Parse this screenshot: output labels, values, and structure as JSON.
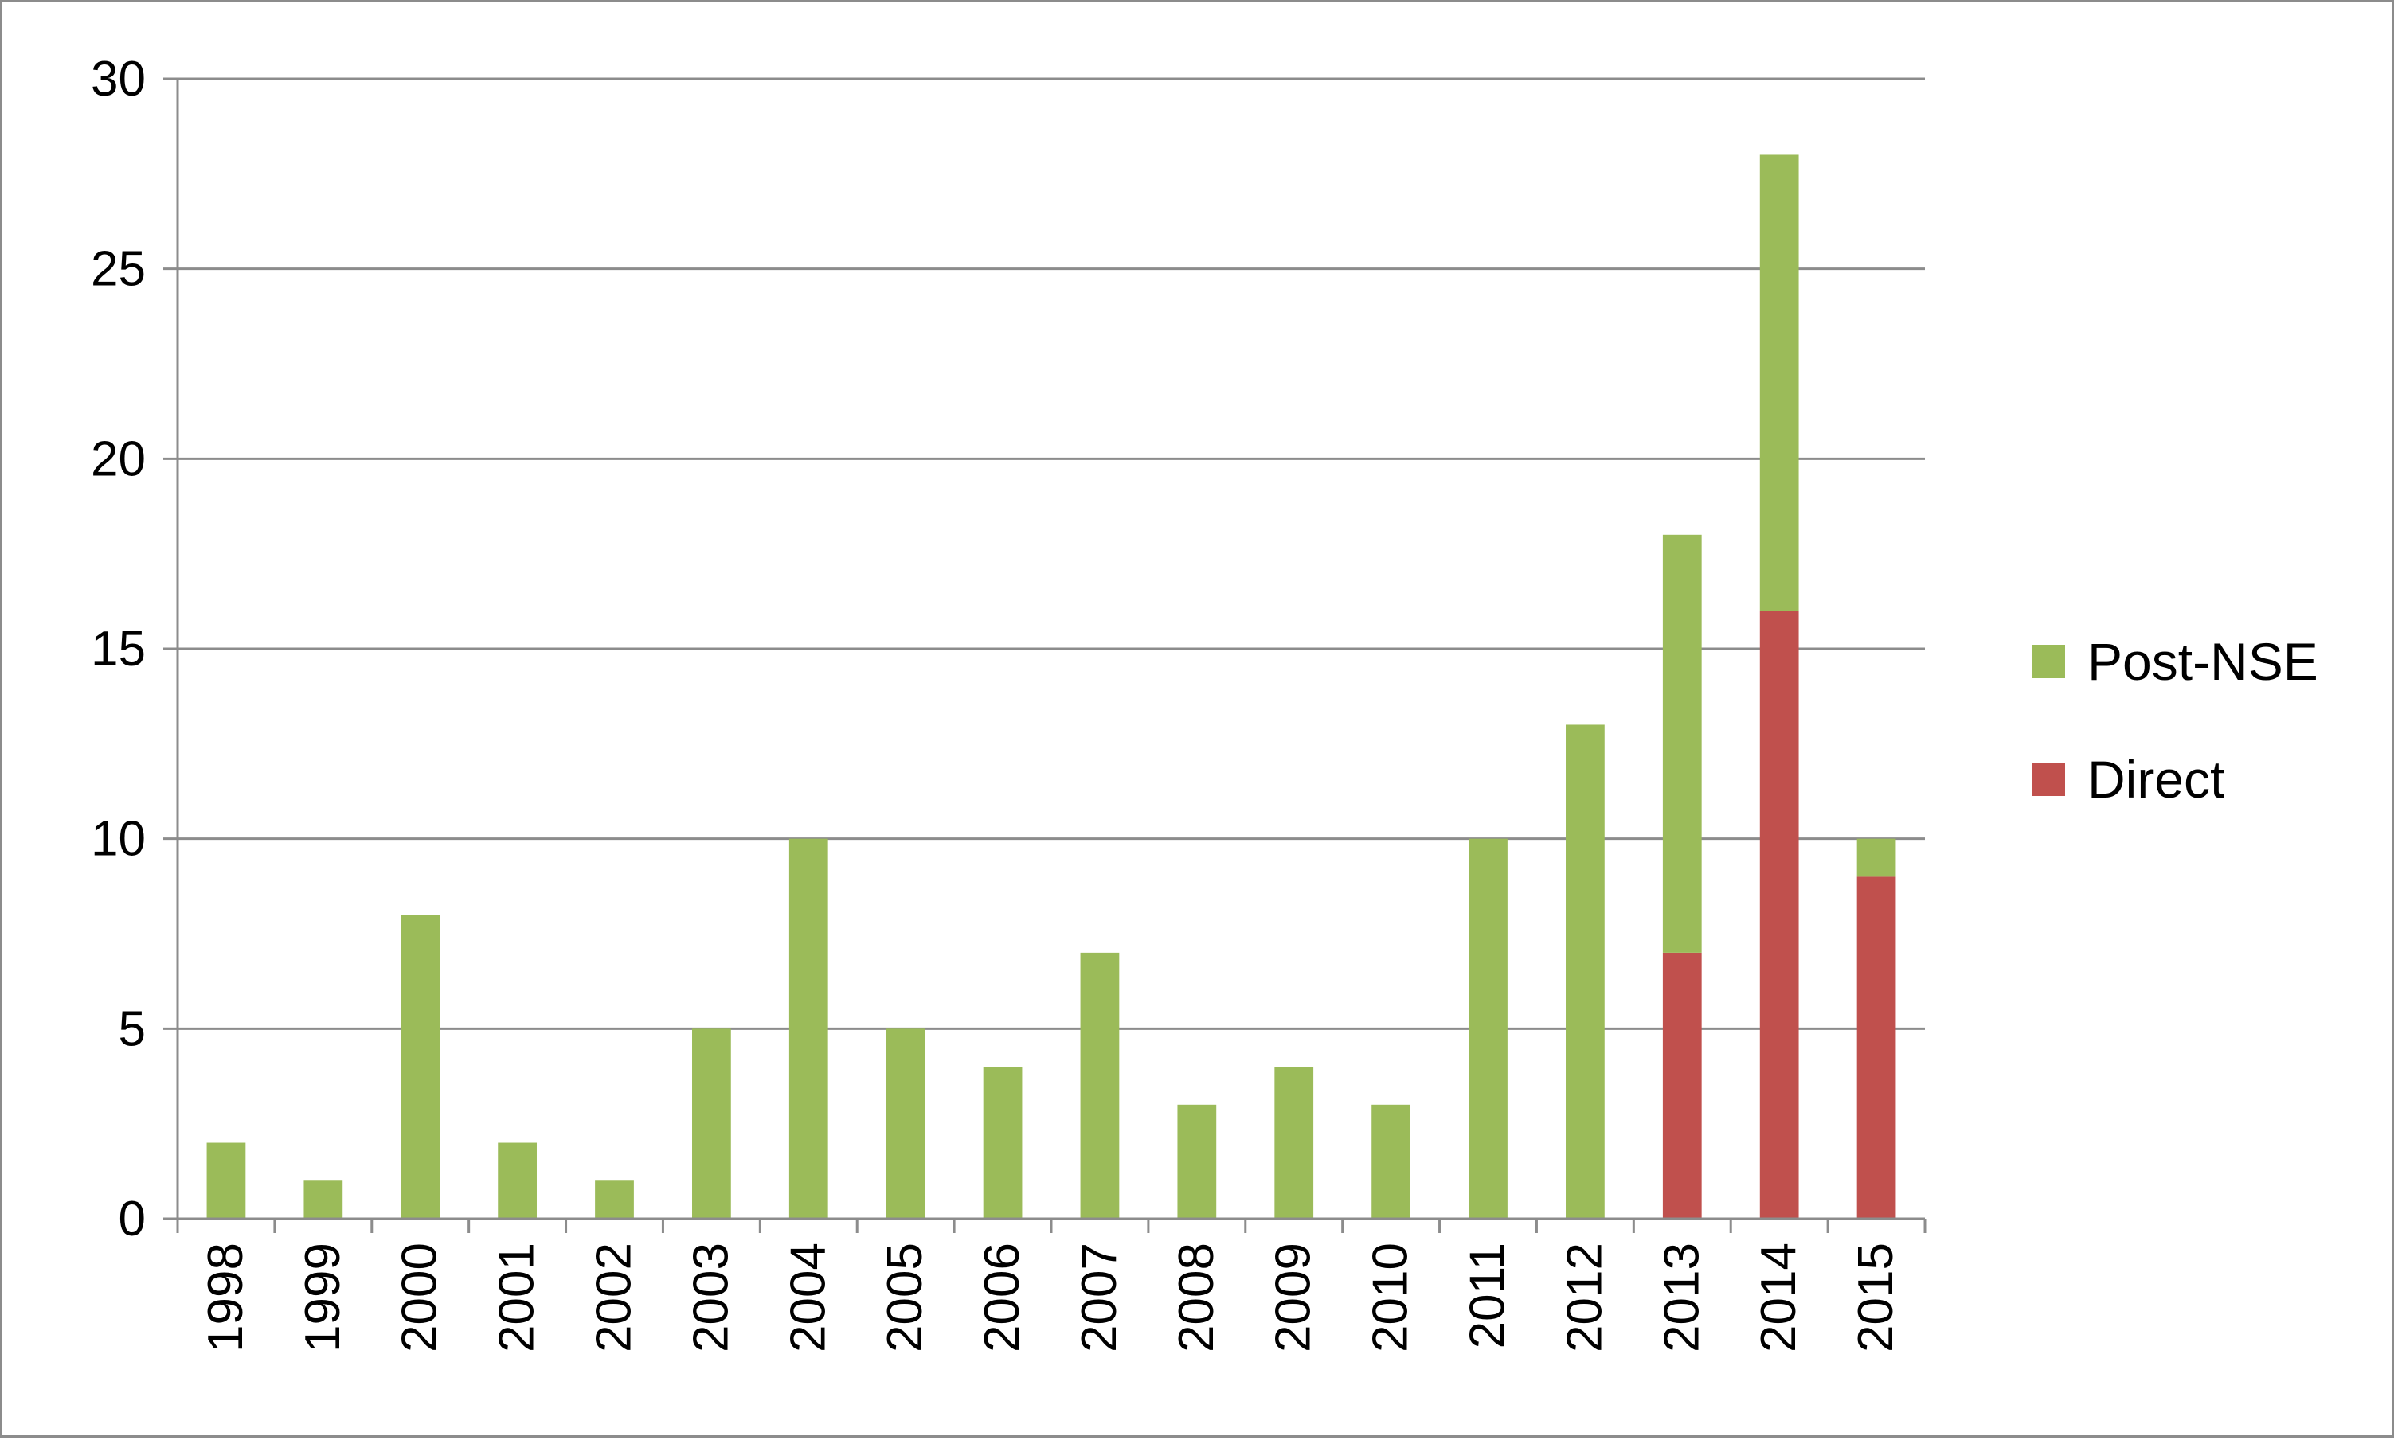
{
  "chart_data": {
    "type": "bar",
    "stacked": true,
    "categories": [
      "1998",
      "1999",
      "2000",
      "2001",
      "2002",
      "2003",
      "2004",
      "2005",
      "2006",
      "2007",
      "2008",
      "2009",
      "2010",
      "2011",
      "2012",
      "2013",
      "2014",
      "2015"
    ],
    "series": [
      {
        "name": "Direct",
        "color": "#c0504d",
        "values": [
          0,
          0,
          0,
          0,
          0,
          0,
          0,
          0,
          0,
          0,
          0,
          0,
          0,
          0,
          0,
          7,
          16,
          9
        ]
      },
      {
        "name": "Post-NSE",
        "color": "#9bbb59",
        "values": [
          2,
          1,
          8,
          2,
          1,
          5,
          10,
          5,
          4,
          7,
          3,
          4,
          3,
          10,
          13,
          11,
          12,
          1
        ]
      }
    ],
    "ylim": [
      0,
      30
    ],
    "yticks": [
      0,
      5,
      10,
      15,
      20,
      25,
      30
    ],
    "grid": true,
    "legend": {
      "position": "right",
      "order": [
        "Post-NSE",
        "Direct"
      ]
    },
    "title": "",
    "xlabel": "",
    "ylabel": ""
  }
}
